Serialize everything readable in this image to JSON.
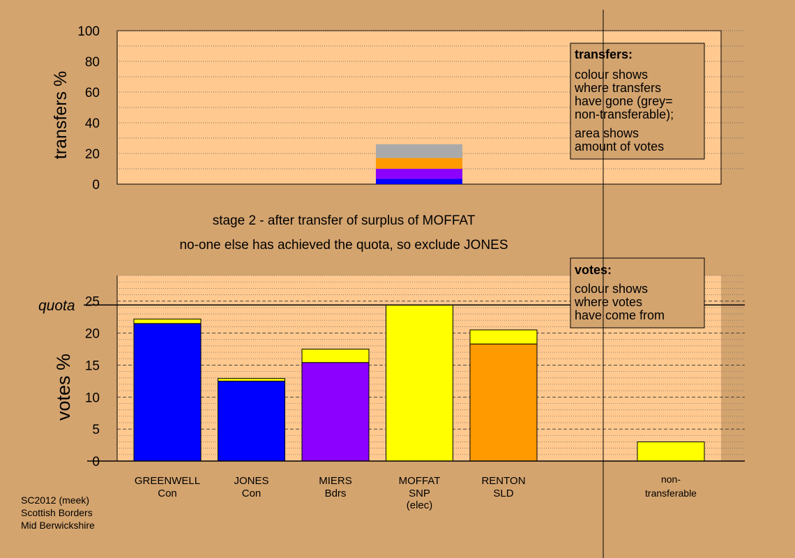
{
  "chart_data": [
    {
      "type": "bar",
      "ylabel": "transfers %",
      "ylim": [
        0,
        100
      ],
      "yticks": [
        0,
        20,
        40,
        60,
        80,
        100
      ],
      "grid": "dotted every 10",
      "stacked_column": {
        "category": "MOFFAT",
        "segments": [
          {
            "color": "#0000ff",
            "value": 3.5
          },
          {
            "color": "#8b00ff",
            "value": 6.5
          },
          {
            "color": "#ff9a00",
            "value": 7
          },
          {
            "color": "#aaaaaa",
            "value": 9
          }
        ]
      },
      "legend": {
        "position": "top-right",
        "title": "transfers:",
        "lines1": [
          "colour shows",
          "where transfers",
          "have gone (grey=",
          "non-transferable);"
        ],
        "lines2": [
          "area shows",
          "amount of votes"
        ]
      }
    },
    {
      "type": "bar",
      "ylabel": "votes %",
      "ylim": [
        0,
        29
      ],
      "yticks": [
        0,
        5,
        10,
        15,
        20,
        25
      ],
      "quota_label": "quota",
      "quota": 24.4,
      "grid": "dashed every 5, dotted every 1",
      "categories": [
        {
          "name": "GREENWELL",
          "party": "Con",
          "base": 21.5,
          "base_color": "#0000ff",
          "added": 0.7
        },
        {
          "name": "JONES",
          "party": "Con",
          "base": 12.5,
          "base_color": "#0000ff",
          "added": 0.4
        },
        {
          "name": "MIERS",
          "party": "Bdrs",
          "base": 15.4,
          "base_color": "#8b00ff",
          "added": 2.1
        },
        {
          "name": "MOFFAT",
          "party": "SNP",
          "note": "(elec)",
          "base": 24.4,
          "base_color": "#ffff00",
          "added": 0
        },
        {
          "name": "RENTON",
          "party": "SLD",
          "base": 18.3,
          "base_color": "#ff9a00",
          "added": 2.2
        }
      ],
      "nontransferable": {
        "label_line1": "non-",
        "label_line2": "transferable",
        "value": 3.0,
        "color": "#ffff00"
      },
      "legend": {
        "position": "top-right",
        "title": "votes:",
        "lines": [
          "colour shows",
          "where votes",
          "have come from"
        ]
      }
    }
  ],
  "stage_text": "stage 2 - after transfer of surplus of MOFFAT",
  "stage_subtext": "no-one else has achieved the quota, so exclude JONES",
  "footer": [
    "SC2012 (meek)",
    "Scottish Borders",
    "Mid Berwickshire"
  ],
  "colors": {
    "background": "#d4a46f",
    "plot_bg": "#ffc98f",
    "legend_bg": "#d4a46f",
    "transfer_added": "#ffff00"
  }
}
